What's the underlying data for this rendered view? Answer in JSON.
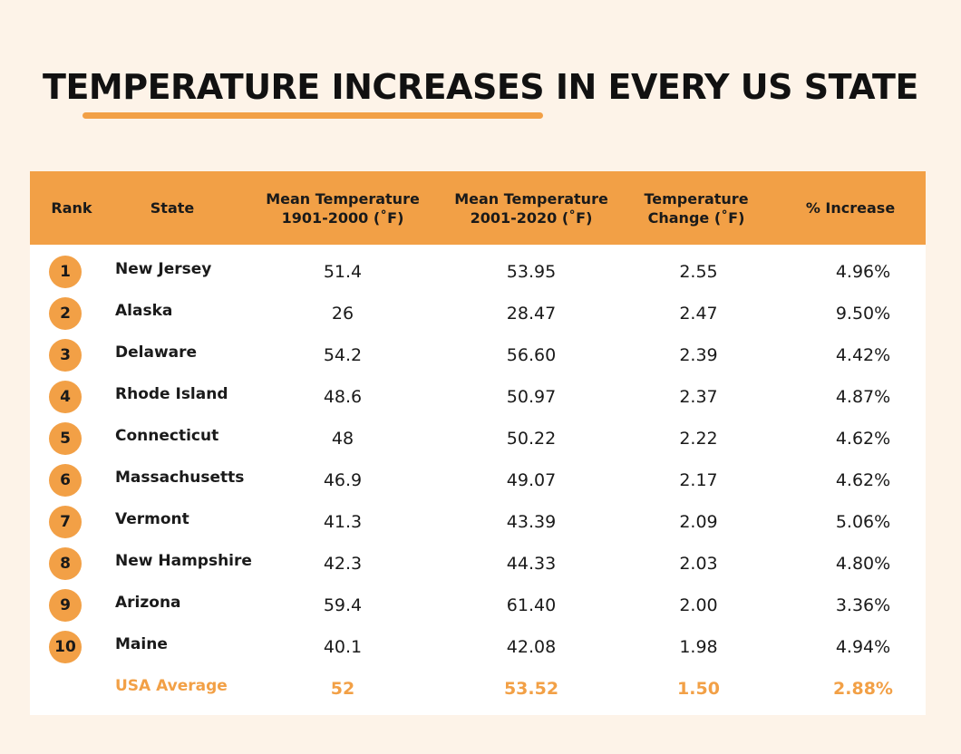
{
  "title": "TEMPERATURE INCREASES IN EVERY US STATE",
  "colors": {
    "background": "#fdf3e8",
    "accent": "#f2a046",
    "table_bg": "#ffffff",
    "text": "#1a1a1a"
  },
  "chart_data": {
    "type": "table",
    "title": "TEMPERATURE INCREASES IN EVERY US STATE",
    "columns": [
      "Rank",
      "State",
      "Mean Temperature\n1901-2000 (˚F)",
      "Mean Temperature\n2001-2020 (˚F)",
      "Temperature\nChange (˚F)",
      "% Increase"
    ],
    "rows": [
      {
        "rank": "1",
        "state": "New Jersey",
        "mean_1901_2000": "51.4",
        "mean_2001_2020": "53.95",
        "change": "2.55",
        "increase": "4.96%"
      },
      {
        "rank": "2",
        "state": "Alaska",
        "mean_1901_2000": "26",
        "mean_2001_2020": "28.47",
        "change": "2.47",
        "increase": "9.50%"
      },
      {
        "rank": "3",
        "state": "Delaware",
        "mean_1901_2000": "54.2",
        "mean_2001_2020": "56.60",
        "change": "2.39",
        "increase": "4.42%"
      },
      {
        "rank": "4",
        "state": "Rhode Island",
        "mean_1901_2000": "48.6",
        "mean_2001_2020": "50.97",
        "change": "2.37",
        "increase": "4.87%"
      },
      {
        "rank": "5",
        "state": "Connecticut",
        "mean_1901_2000": "48",
        "mean_2001_2020": "50.22",
        "change": "2.22",
        "increase": "4.62%"
      },
      {
        "rank": "6",
        "state": "Massachusetts",
        "mean_1901_2000": "46.9",
        "mean_2001_2020": "49.07",
        "change": "2.17",
        "increase": "4.62%"
      },
      {
        "rank": "7",
        "state": "Vermont",
        "mean_1901_2000": "41.3",
        "mean_2001_2020": "43.39",
        "change": "2.09",
        "increase": "5.06%"
      },
      {
        "rank": "8",
        "state": "New Hampshire",
        "mean_1901_2000": "42.3",
        "mean_2001_2020": "44.33",
        "change": "2.03",
        "increase": "4.80%"
      },
      {
        "rank": "9",
        "state": "Arizona",
        "mean_1901_2000": "59.4",
        "mean_2001_2020": "61.40",
        "change": "2.00",
        "increase": "3.36%"
      },
      {
        "rank": "10",
        "state": "Maine",
        "mean_1901_2000": "40.1",
        "mean_2001_2020": "42.08",
        "change": "1.98",
        "increase": "4.94%"
      }
    ],
    "average": {
      "label": "USA Average",
      "mean_1901_2000": "52",
      "mean_2001_2020": "53.52",
      "change": "1.50",
      "increase": "2.88%"
    }
  }
}
